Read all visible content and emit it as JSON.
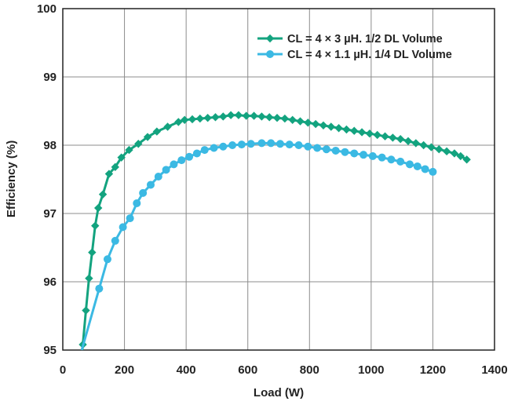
{
  "chart_data": {
    "type": "line",
    "xlabel": "Load (W)",
    "ylabel": "Efficiency (%)",
    "xlim": [
      0,
      1400
    ],
    "ylim": [
      95,
      100
    ],
    "xticks": [
      "0",
      "200",
      "400",
      "600",
      "800",
      "1000",
      "1200",
      "1400"
    ],
    "yticks": [
      "95",
      "96",
      "97",
      "98",
      "99",
      "100"
    ],
    "grid": true,
    "legend_position": "top-right",
    "series": [
      {
        "name": "CL = 4 × 3 µH. 1/2 DL Volume",
        "color": "#13a37f",
        "marker": "diamond",
        "points": [
          [
            65,
            95.08
          ],
          [
            75,
            95.58
          ],
          [
            85,
            96.05
          ],
          [
            95,
            96.43
          ],
          [
            105,
            96.82
          ],
          [
            115,
            97.08
          ],
          [
            130,
            97.28
          ],
          [
            150,
            97.58
          ],
          [
            170,
            97.68
          ],
          [
            190,
            97.82
          ],
          [
            215,
            97.93
          ],
          [
            245,
            98.02
          ],
          [
            275,
            98.12
          ],
          [
            305,
            98.2
          ],
          [
            340,
            98.27
          ],
          [
            375,
            98.34
          ],
          [
            395,
            98.37
          ],
          [
            420,
            98.38
          ],
          [
            445,
            98.39
          ],
          [
            470,
            98.4
          ],
          [
            495,
            98.41
          ],
          [
            520,
            98.42
          ],
          [
            545,
            98.44
          ],
          [
            570,
            98.44
          ],
          [
            595,
            98.43
          ],
          [
            620,
            98.43
          ],
          [
            645,
            98.42
          ],
          [
            670,
            98.41
          ],
          [
            695,
            98.4
          ],
          [
            720,
            98.39
          ],
          [
            745,
            98.37
          ],
          [
            770,
            98.35
          ],
          [
            795,
            98.33
          ],
          [
            820,
            98.31
          ],
          [
            845,
            98.29
          ],
          [
            870,
            98.27
          ],
          [
            895,
            98.25
          ],
          [
            920,
            98.23
          ],
          [
            945,
            98.21
          ],
          [
            970,
            98.19
          ],
          [
            995,
            98.17
          ],
          [
            1020,
            98.15
          ],
          [
            1045,
            98.13
          ],
          [
            1070,
            98.11
          ],
          [
            1095,
            98.09
          ],
          [
            1120,
            98.06
          ],
          [
            1145,
            98.03
          ],
          [
            1170,
            98.0
          ],
          [
            1195,
            97.97
          ],
          [
            1220,
            97.94
          ],
          [
            1245,
            97.91
          ],
          [
            1270,
            97.88
          ],
          [
            1290,
            97.84
          ],
          [
            1310,
            97.79
          ]
        ]
      },
      {
        "name": "CL = 4 × 1.1 µH. 1/4 DL Volume",
        "color": "#3bb9e3",
        "marker": "circle",
        "points": [
          [
            118,
            95.9
          ],
          [
            145,
            96.33
          ],
          [
            170,
            96.6
          ],
          [
            195,
            96.8
          ],
          [
            218,
            96.93
          ],
          [
            240,
            97.15
          ],
          [
            260,
            97.3
          ],
          [
            285,
            97.42
          ],
          [
            310,
            97.54
          ],
          [
            335,
            97.64
          ],
          [
            360,
            97.72
          ],
          [
            385,
            97.78
          ],
          [
            410,
            97.83
          ],
          [
            435,
            97.88
          ],
          [
            460,
            97.93
          ],
          [
            490,
            97.96
          ],
          [
            520,
            97.98
          ],
          [
            550,
            98.0
          ],
          [
            580,
            98.01
          ],
          [
            610,
            98.02
          ],
          [
            645,
            98.03
          ],
          [
            675,
            98.03
          ],
          [
            705,
            98.02
          ],
          [
            735,
            98.01
          ],
          [
            765,
            98.0
          ],
          [
            795,
            97.98
          ],
          [
            825,
            97.96
          ],
          [
            855,
            97.94
          ],
          [
            885,
            97.92
          ],
          [
            915,
            97.9
          ],
          [
            945,
            97.88
          ],
          [
            975,
            97.86
          ],
          [
            1005,
            97.84
          ],
          [
            1035,
            97.82
          ],
          [
            1065,
            97.79
          ],
          [
            1095,
            97.76
          ],
          [
            1125,
            97.72
          ],
          [
            1150,
            97.69
          ],
          [
            1175,
            97.65
          ],
          [
            1200,
            97.61
          ]
        ]
      }
    ]
  }
}
